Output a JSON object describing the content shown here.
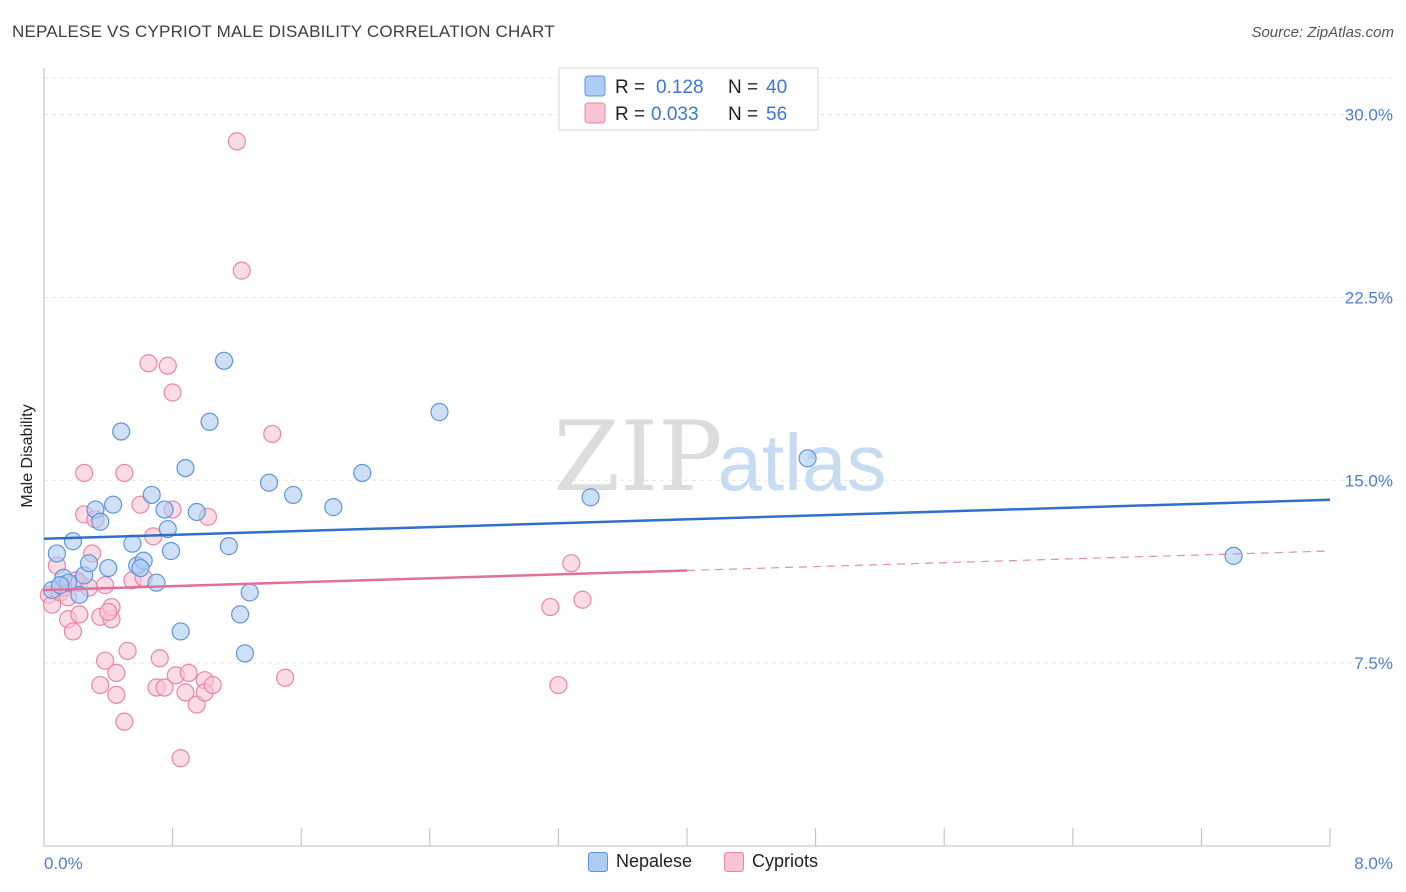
{
  "title": "NEPALESE VS CYPRIOT MALE DISABILITY CORRELATION CHART",
  "source": "Source: ZipAtlas.com",
  "watermark": {
    "zip": "ZIP",
    "atlas": "atlas"
  },
  "colors": {
    "nepalese_fill": "#aecbf4",
    "nepalese_stroke": "#5f96da",
    "nepalese_line": "#2f6fcc",
    "cypriot_fill": "#f8c3d2",
    "cypriot_stroke": "#e886a6",
    "cypriot_line": "#e0709a",
    "tick_text": "#4a7fcf",
    "grid": "#e4e4e4"
  },
  "legend": {
    "rows": [
      {
        "r_label": "R =",
        "r_value": "0.128",
        "n_label": "N =",
        "n_value": "40"
      },
      {
        "r_label": "R =",
        "r_value": "0.033",
        "n_label": "N =",
        "n_value": "56"
      }
    ]
  },
  "chart_data": {
    "type": "scatter",
    "title": "NEPALESE VS CYPRIOT MALE DISABILITY CORRELATION CHART",
    "xlabel": "",
    "ylabel": "Male Disability",
    "xlim": [
      0,
      8.0
    ],
    "ylim": [
      0,
      31.5
    ],
    "x_tick_labels": [
      "0.0%",
      "8.0%"
    ],
    "y_ticks": [
      7.5,
      15.0,
      22.5,
      30.0
    ],
    "y_tick_labels": [
      "7.5%",
      "15.0%",
      "22.5%",
      "30.0%"
    ],
    "grid": true,
    "legend_position": "top-center",
    "series": [
      {
        "name": "Nepalese",
        "r": 0.128,
        "n": 40,
        "trend": {
          "x0": 0.0,
          "y0": 12.6,
          "x1": 8.0,
          "y1": 14.2
        },
        "points": [
          [
            0.05,
            10.5
          ],
          [
            0.08,
            12.0
          ],
          [
            0.12,
            11.0
          ],
          [
            0.18,
            12.5
          ],
          [
            0.22,
            10.3
          ],
          [
            0.25,
            11.1
          ],
          [
            0.28,
            11.6
          ],
          [
            0.32,
            13.8
          ],
          [
            0.35,
            13.3
          ],
          [
            0.4,
            11.4
          ],
          [
            0.43,
            14.0
          ],
          [
            0.48,
            17.0
          ],
          [
            0.55,
            12.4
          ],
          [
            0.58,
            11.5
          ],
          [
            0.62,
            11.7
          ],
          [
            0.67,
            14.4
          ],
          [
            0.7,
            10.8
          ],
          [
            0.75,
            13.8
          ],
          [
            0.77,
            13.0
          ],
          [
            0.79,
            12.1
          ],
          [
            0.85,
            8.8
          ],
          [
            0.88,
            15.5
          ],
          [
            0.95,
            13.7
          ],
          [
            1.03,
            17.4
          ],
          [
            1.12,
            19.9
          ],
          [
            1.15,
            12.3
          ],
          [
            1.22,
            9.5
          ],
          [
            1.25,
            7.9
          ],
          [
            1.28,
            10.4
          ],
          [
            1.4,
            14.9
          ],
          [
            1.55,
            14.4
          ],
          [
            1.8,
            13.9
          ],
          [
            1.98,
            15.3
          ],
          [
            2.46,
            17.8
          ],
          [
            3.4,
            14.3
          ],
          [
            4.75,
            15.9
          ],
          [
            7.4,
            11.9
          ],
          [
            0.15,
            10.8
          ],
          [
            0.1,
            10.7
          ],
          [
            0.6,
            11.4
          ]
        ]
      },
      {
        "name": "Cypriots",
        "r": 0.033,
        "n": 56,
        "trend": {
          "x0": 0.0,
          "y0": 10.5,
          "x1": 4.0,
          "y1": 11.3
        },
        "trend_extension": {
          "x0": 4.0,
          "y0": 11.3,
          "x1": 8.0,
          "y1": 12.1
        },
        "points": [
          [
            0.03,
            10.3
          ],
          [
            0.05,
            9.9
          ],
          [
            0.08,
            11.5
          ],
          [
            0.1,
            10.4
          ],
          [
            0.12,
            10.6
          ],
          [
            0.15,
            9.3
          ],
          [
            0.15,
            10.2
          ],
          [
            0.18,
            8.8
          ],
          [
            0.2,
            10.9
          ],
          [
            0.22,
            9.5
          ],
          [
            0.22,
            10.8
          ],
          [
            0.25,
            13.6
          ],
          [
            0.25,
            15.3
          ],
          [
            0.3,
            12.0
          ],
          [
            0.32,
            13.4
          ],
          [
            0.35,
            9.4
          ],
          [
            0.35,
            6.6
          ],
          [
            0.38,
            10.7
          ],
          [
            0.38,
            7.6
          ],
          [
            0.42,
            9.3
          ],
          [
            0.42,
            9.8
          ],
          [
            0.45,
            6.2
          ],
          [
            0.45,
            7.1
          ],
          [
            0.5,
            5.1
          ],
          [
            0.5,
            15.3
          ],
          [
            0.52,
            8.0
          ],
          [
            0.55,
            10.9
          ],
          [
            0.6,
            14.0
          ],
          [
            0.62,
            11.0
          ],
          [
            0.65,
            19.8
          ],
          [
            0.68,
            12.7
          ],
          [
            0.7,
            6.5
          ],
          [
            0.72,
            7.7
          ],
          [
            0.75,
            6.5
          ],
          [
            0.77,
            19.7
          ],
          [
            0.8,
            18.6
          ],
          [
            0.8,
            13.8
          ],
          [
            0.82,
            7.0
          ],
          [
            0.85,
            3.6
          ],
          [
            0.88,
            6.3
          ],
          [
            0.9,
            7.1
          ],
          [
            0.95,
            5.8
          ],
          [
            1.0,
            6.8
          ],
          [
            1.0,
            6.3
          ],
          [
            1.02,
            13.5
          ],
          [
            1.05,
            6.6
          ],
          [
            1.2,
            28.9
          ],
          [
            1.23,
            23.6
          ],
          [
            1.42,
            16.9
          ],
          [
            1.5,
            6.9
          ],
          [
            3.15,
            9.8
          ],
          [
            3.2,
            6.6
          ],
          [
            3.28,
            11.6
          ],
          [
            3.35,
            10.1
          ],
          [
            0.28,
            10.6
          ],
          [
            0.4,
            9.6
          ]
        ]
      }
    ]
  }
}
